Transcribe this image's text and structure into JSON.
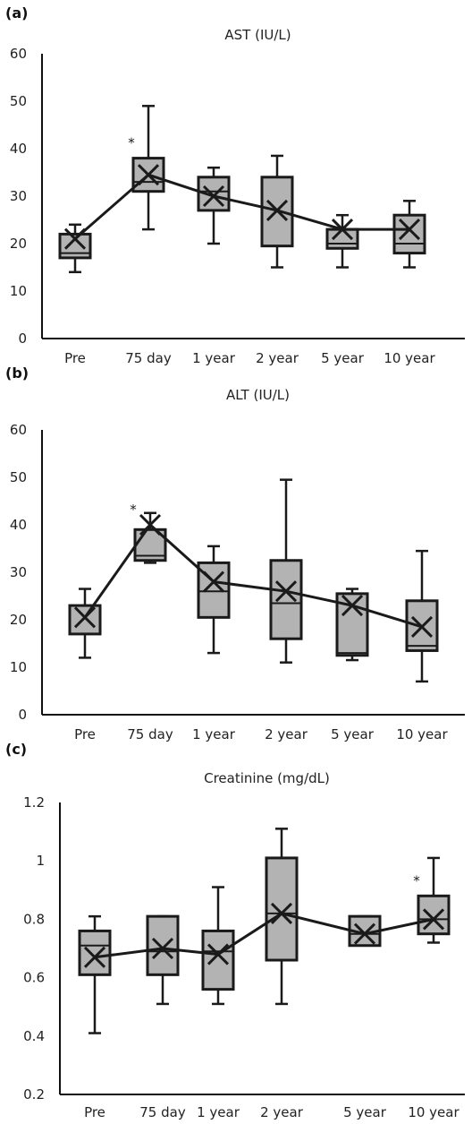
{
  "chart_data": [
    {
      "type": "box",
      "panel_label": "(a)",
      "title": "AST (IU/L)",
      "categories": [
        "Pre",
        "75 day",
        "1 year",
        "2 year",
        "5 year",
        "10 year"
      ],
      "ylim": [
        0,
        60
      ],
      "yticks": [
        "0",
        "10",
        "20",
        "30",
        "40",
        "50",
        "60"
      ],
      "boxes": [
        {
          "min": 14,
          "q1": 17,
          "median": 18,
          "q3": 22,
          "max": 24,
          "mean": 21
        },
        {
          "min": 23,
          "q1": 31,
          "median": 33,
          "q3": 38,
          "max": 49,
          "mean": 34.5
        },
        {
          "min": 20,
          "q1": 27,
          "median": 31,
          "q3": 34,
          "max": 36,
          "mean": 30
        },
        {
          "min": 15,
          "q1": 19.5,
          "median": 19.5,
          "q3": 34,
          "max": 38.5,
          "mean": 27
        },
        {
          "min": 15,
          "q1": 19,
          "median": 20,
          "q3": 23,
          "max": 26,
          "mean": 23
        },
        {
          "min": 15,
          "q1": 18,
          "median": 20,
          "q3": 26,
          "max": 29,
          "mean": 23
        }
      ],
      "significance": [
        {
          "category": "75 day",
          "label": "*"
        }
      ],
      "grid": false
    },
    {
      "type": "box",
      "panel_label": "(b)",
      "title": "ALT (IU/L)",
      "categories": [
        "Pre",
        "75 day",
        "1 year",
        "2 year",
        "5 year",
        "10 year"
      ],
      "ylim": [
        0,
        60
      ],
      "yticks": [
        "0",
        "10",
        "20",
        "30",
        "40",
        "50",
        "60"
      ],
      "boxes": [
        {
          "min": 12,
          "q1": 17,
          "median": 17,
          "q3": 23,
          "max": 26.5,
          "mean": 20.5
        },
        {
          "min": 32,
          "q1": 32.5,
          "median": 33.5,
          "q3": 39,
          "max": 42.5,
          "mean": 40
        },
        {
          "min": 13,
          "q1": 20.5,
          "median": 26,
          "q3": 32,
          "max": 35.5,
          "mean": 28
        },
        {
          "min": 11,
          "q1": 16,
          "median": 23.5,
          "q3": 32.5,
          "max": 49.5,
          "mean": 26
        },
        {
          "min": 11.5,
          "q1": 12.5,
          "median": 13,
          "q3": 25.5,
          "max": 26.5,
          "mean": 23
        },
        {
          "min": 7,
          "q1": 13.5,
          "median": 14.5,
          "q3": 24,
          "max": 34.5,
          "mean": 18.5
        }
      ],
      "significance": [
        {
          "category": "75 day",
          "label": "*"
        }
      ],
      "grid": false
    },
    {
      "type": "box",
      "panel_label": "(c)",
      "title": "Creatinine (mg/dL)",
      "categories": [
        "Pre",
        "75 day",
        "1 year",
        "2 year",
        "5 year",
        "10 year"
      ],
      "ylim": [
        0.2,
        1.2
      ],
      "yticks": [
        "0.2",
        "0.4",
        "0.6",
        "0.8",
        "1",
        "1.2"
      ],
      "boxes": [
        {
          "min": 0.41,
          "q1": 0.61,
          "median": 0.71,
          "q3": 0.76,
          "max": 0.81,
          "mean": 0.67
        },
        {
          "min": 0.51,
          "q1": 0.61,
          "median": 0.69,
          "q3": 0.81,
          "max": 0.81,
          "mean": 0.7
        },
        {
          "min": 0.51,
          "q1": 0.56,
          "median": 0.69,
          "q3": 0.76,
          "max": 0.91,
          "mean": 0.68
        },
        {
          "min": 0.51,
          "q1": 0.66,
          "median": 0.82,
          "q3": 1.01,
          "max": 1.11,
          "mean": 0.82
        },
        {
          "min": 0.71,
          "q1": 0.71,
          "median": 0.75,
          "q3": 0.81,
          "max": 0.81,
          "mean": 0.75
        },
        {
          "min": 0.72,
          "q1": 0.75,
          "median": 0.8,
          "q3": 0.88,
          "max": 1.01,
          "mean": 0.8
        }
      ],
      "significance": [
        {
          "category": "10 year",
          "label": "*"
        }
      ],
      "grid": false
    }
  ],
  "colors": {
    "box_fill": "#b3b3b3",
    "box_stroke": "#1a1a1a",
    "line": "#1a1a1a",
    "text": "#222222"
  }
}
